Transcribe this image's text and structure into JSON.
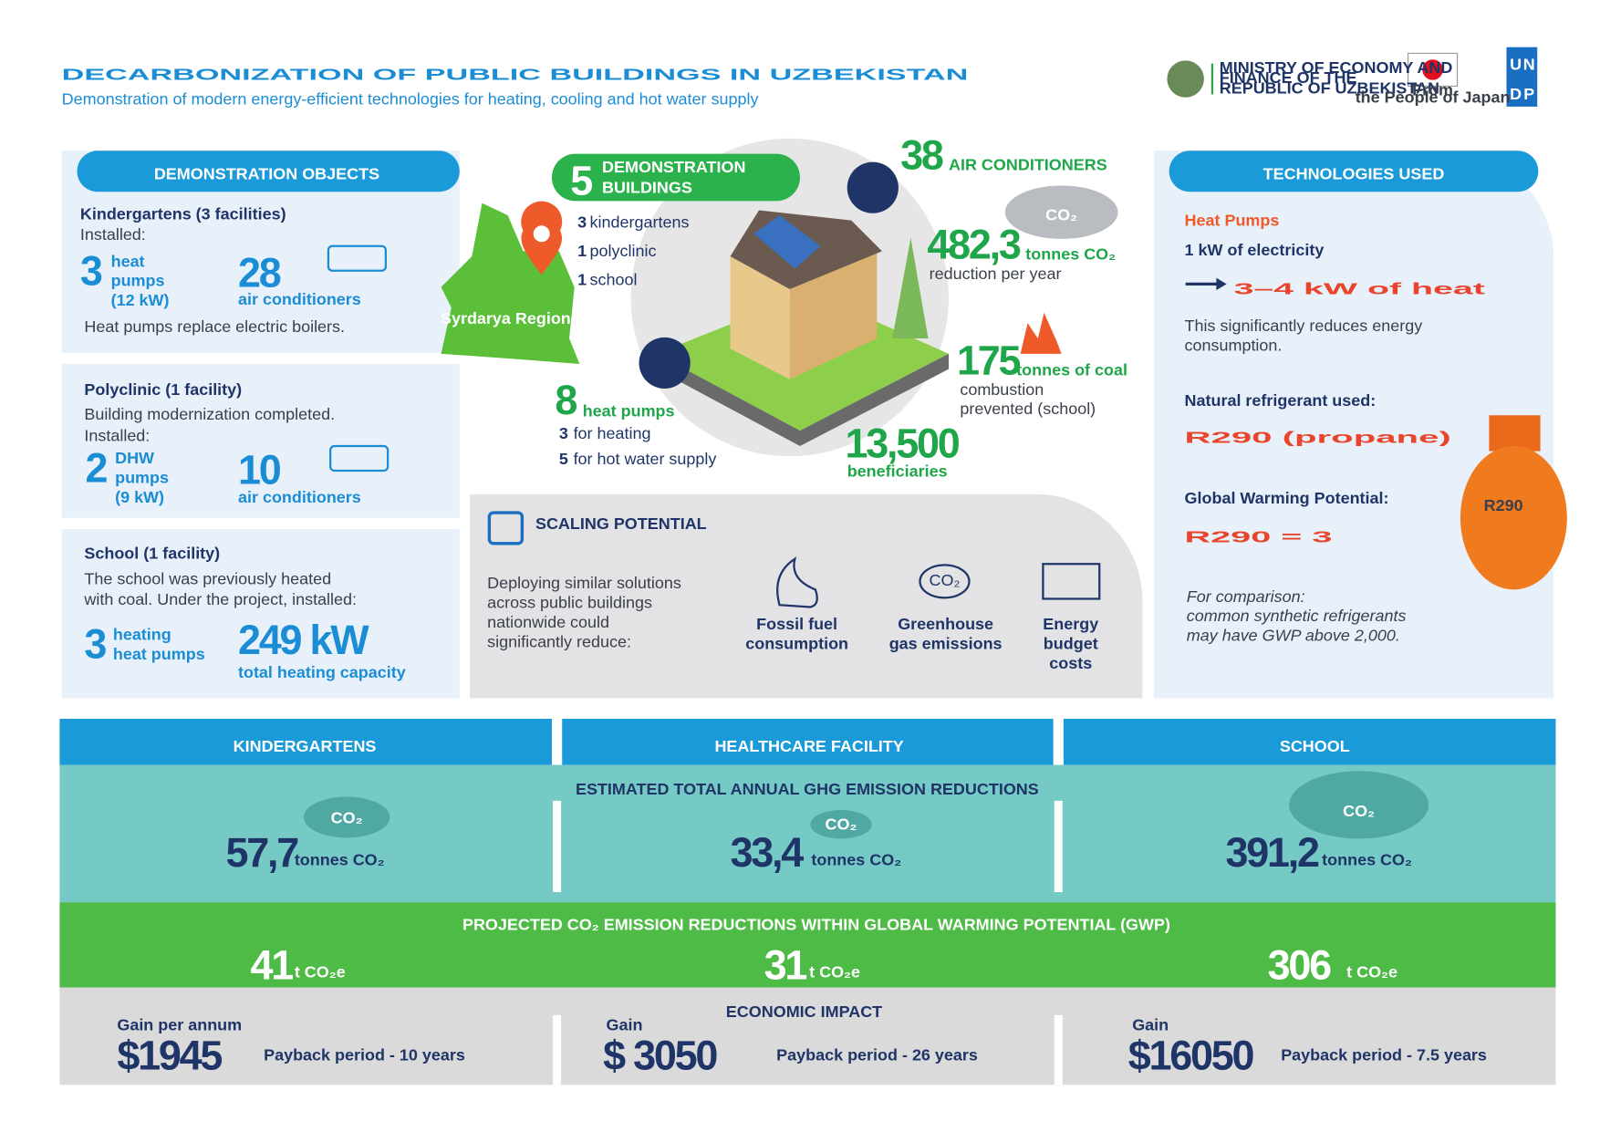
{
  "header": {
    "title": "DECARBONIZATION OF PUBLIC BUILDINGS IN UZBEKISTAN",
    "subtitle": "Demonstration of modern energy-efficient technologies for heating, cooling and hot water supply",
    "ministry": [
      "MINISTRY OF ECONOMY AND",
      "FINANCE OF THE",
      "REPUBLIC OF UZBEKISTAN"
    ],
    "japan": [
      "From",
      "the People of Japan"
    ],
    "undp": [
      "U",
      "N",
      "D",
      "P"
    ]
  },
  "objects": {
    "heading": "DEMONSTRATION OBJECTS",
    "kindergartens": {
      "title": "Kindergartens (3 facilities)",
      "installed": "Installed:",
      "n1": "3",
      "l1": [
        "heat",
        "pumps",
        "(12 kW)"
      ],
      "n2": "28",
      "l2": "air conditioners",
      "note": "Heat pumps replace electric boilers."
    },
    "polyclinic": {
      "title": "Polyclinic (1 facility)",
      "lines": [
        "Building modernization completed.",
        "Installed:"
      ],
      "n1": "2",
      "l1": [
        "DHW",
        "pumps",
        "(9 kW)"
      ],
      "n2": "10",
      "l2": "air conditioners"
    },
    "school": {
      "title": "School (1 facility)",
      "lines": [
        "The school was previously heated",
        "with coal. Under the project, installed:"
      ],
      "n1": "3",
      "l1": [
        "heating",
        "heat pumps"
      ],
      "n2": "249 kW",
      "l2": "total heating capacity"
    }
  },
  "center": {
    "badge": {
      "n": "5",
      "lines": [
        "DEMONSTRATION",
        "BUILDINGS"
      ]
    },
    "list": [
      {
        "n": "3",
        "t": "kindergartens"
      },
      {
        "n": "1",
        "t": "polyclinic"
      },
      {
        "n": "1",
        "t": "school"
      }
    ],
    "region": "Syrdarya Region",
    "ac": {
      "n": "38",
      "t": "AIR CONDITIONERS"
    },
    "co2": {
      "cloud": "CO₂",
      "n": "482,3",
      "unit": "tonnes CO₂",
      "sub": "reduction per year"
    },
    "coal": {
      "n": "175",
      "unit": "tonnes of coal",
      "sub": [
        "combustion",
        "prevented (school)"
      ]
    },
    "hp": {
      "n": "8",
      "t": "heat pumps",
      "lines": [
        {
          "n": "3",
          "t": "for heating"
        },
        {
          "n": "5",
          "t": "for hot water supply"
        }
      ]
    },
    "beneficiaries": {
      "n": "13,500",
      "t": "beneficiaries"
    }
  },
  "scaling": {
    "heading": "SCALING POTENTIAL",
    "text": [
      "Deploying similar solutions",
      "across public buildings",
      "nationwide could",
      "significantly reduce:"
    ],
    "icon_co2": "CO₂",
    "items": [
      [
        "Fossil fuel",
        "consumption"
      ],
      [
        "Greenhouse",
        "gas emissions"
      ],
      [
        "Energy",
        "budget",
        "costs"
      ]
    ]
  },
  "tech": {
    "heading": "TECHNOLOGIES USED",
    "hp": "Heat Pumps",
    "elec": "1 kW of electricity",
    "heat": "3–4 kW of heat",
    "desc": [
      "This significantly reduces energy",
      "consumption."
    ],
    "refrigerant_label": "Natural refrigerant used:",
    "refrigerant": "R290 (propane)",
    "gwp_label": "Global Warming Potential:",
    "gwp": "R290 = 3",
    "comparison": [
      "For comparison:",
      "common synthetic refrigerants",
      "may have GWP above 2,000."
    ],
    "cylinder": "R290"
  },
  "bottom": {
    "columns": [
      "KINDERGARTENS",
      "HEALTHCARE FACILITY",
      "SCHOOL"
    ],
    "ghg_label": "ESTIMATED TOTAL ANNUAL GHG EMISSION REDUCTIONS",
    "cloud": "CO₂",
    "ghg": [
      {
        "n": "57,7",
        "u": "tonnes CO₂"
      },
      {
        "n": "33,4",
        "u": "tonnes CO₂"
      },
      {
        "n": "391,2",
        "u": "tonnes CO₂"
      }
    ],
    "gwp_label": "PROJECTED CO₂ EMISSION REDUCTIONS WITHIN GLOBAL WARMING POTENTIAL (GWP)",
    "gwp": [
      {
        "n": "41",
        "u": "t CO₂e"
      },
      {
        "n": "31",
        "u": "t CO₂e"
      },
      {
        "n": "306",
        "u": "t CO₂e"
      }
    ],
    "economic_label": "ECONOMIC  IMPACT",
    "economic": [
      {
        "gain": "Gain per annum",
        "amount": "$1945",
        "payback": "Payback period - 10 years"
      },
      {
        "gain": "Gain",
        "amount": "$ 3050",
        "payback": "Payback period - 26 years"
      },
      {
        "gain": "Gain",
        "amount": "$16050",
        "payback": "Payback period - 7.5 years"
      }
    ]
  }
}
